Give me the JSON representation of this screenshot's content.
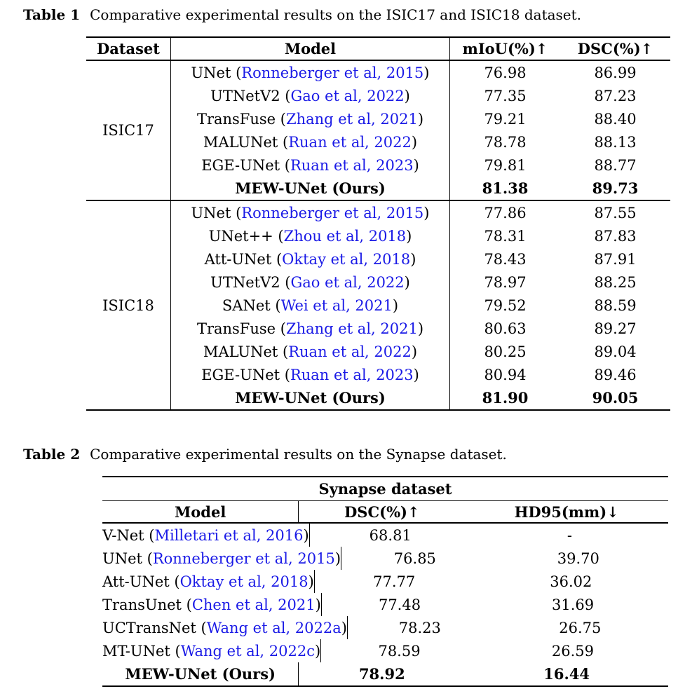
{
  "colors": {
    "citation_blue": "#1a1ae6",
    "text": "#000000",
    "background": "#ffffff"
  },
  "caption1": {
    "label": "Table 1",
    "text": "Comparative experimental results on the ISIC17 and ISIC18 dataset."
  },
  "caption2": {
    "label": "Table 2",
    "text": "Comparative experimental results on the Synapse dataset."
  },
  "table1": {
    "headers": {
      "dataset": "Dataset",
      "model": "Model",
      "metric1": "mIoU(%)↑",
      "metric2": "DSC(%)↑"
    },
    "sections": [
      {
        "dataset": "ISIC17",
        "rows": [
          {
            "model": "UNet",
            "cite": "Ronneberger et al, 2015",
            "v1": "76.98",
            "v2": "86.99",
            "bold": false
          },
          {
            "model": "UTNetV2",
            "cite": "Gao et al, 2022",
            "v1": "77.35",
            "v2": "87.23",
            "bold": false
          },
          {
            "model": "TransFuse",
            "cite": "Zhang et al, 2021",
            "v1": "79.21",
            "v2": "88.40",
            "bold": false
          },
          {
            "model": "MALUNet",
            "cite": "Ruan et al, 2022",
            "v1": "78.78",
            "v2": "88.13",
            "bold": false
          },
          {
            "model": "EGE-UNet",
            "cite": "Ruan et al, 2023",
            "v1": "79.81",
            "v2": "88.77",
            "bold": false
          },
          {
            "model": "MEW-UNet (Ours)",
            "cite": null,
            "v1": "81.38",
            "v2": "89.73",
            "bold": true
          }
        ]
      },
      {
        "dataset": "ISIC18",
        "rows": [
          {
            "model": "UNet",
            "cite": "Ronneberger et al, 2015",
            "v1": "77.86",
            "v2": "87.55",
            "bold": false
          },
          {
            "model": "UNet++",
            "cite": "Zhou et al, 2018",
            "v1": "78.31",
            "v2": "87.83",
            "bold": false
          },
          {
            "model": "Att-UNet",
            "cite": "Oktay et al, 2018",
            "v1": "78.43",
            "v2": "87.91",
            "bold": false
          },
          {
            "model": "UTNetV2",
            "cite": "Gao et al, 2022",
            "v1": "78.97",
            "v2": "88.25",
            "bold": false
          },
          {
            "model": "SANet",
            "cite": "Wei et al, 2021",
            "v1": "79.52",
            "v2": "88.59",
            "bold": false
          },
          {
            "model": "TransFuse",
            "cite": "Zhang et al, 2021",
            "v1": "80.63",
            "v2": "89.27",
            "bold": false
          },
          {
            "model": "MALUNet",
            "cite": "Ruan et al, 2022",
            "v1": "80.25",
            "v2": "89.04",
            "bold": false
          },
          {
            "model": "EGE-UNet",
            "cite": "Ruan et al, 2023",
            "v1": "80.94",
            "v2": "89.46",
            "bold": false
          },
          {
            "model": "MEW-UNet (Ours)",
            "cite": null,
            "v1": "81.90",
            "v2": "90.05",
            "bold": true
          }
        ]
      }
    ]
  },
  "table2": {
    "title": "Synapse dataset",
    "headers": {
      "model": "Model",
      "metric1": "DSC(%)↑",
      "metric2": "HD95(mm)↓"
    },
    "rows": [
      {
        "model": "V-Net",
        "cite": "Milletari et al, 2016",
        "v1": "68.81",
        "v2": "-",
        "bold": false
      },
      {
        "model": "UNet",
        "cite": "Ronneberger et al, 2015",
        "v1": "76.85",
        "v2": "39.70",
        "bold": false
      },
      {
        "model": "Att-UNet",
        "cite": "Oktay et al, 2018",
        "v1": "77.77",
        "v2": "36.02",
        "bold": false
      },
      {
        "model": "TransUnet",
        "cite": "Chen et al, 2021",
        "v1": "77.48",
        "v2": "31.69",
        "bold": false
      },
      {
        "model": "UCTransNet",
        "cite": "Wang et al, 2022a",
        "v1": "78.23",
        "v2": "26.75",
        "bold": false
      },
      {
        "model": "MT-UNet",
        "cite": "Wang et al, 2022c",
        "v1": "78.59",
        "v2": "26.59",
        "bold": false
      },
      {
        "model": "MEW-UNet (Ours)",
        "cite": null,
        "v1": "78.92",
        "v2": "16.44",
        "bold": true
      }
    ]
  }
}
